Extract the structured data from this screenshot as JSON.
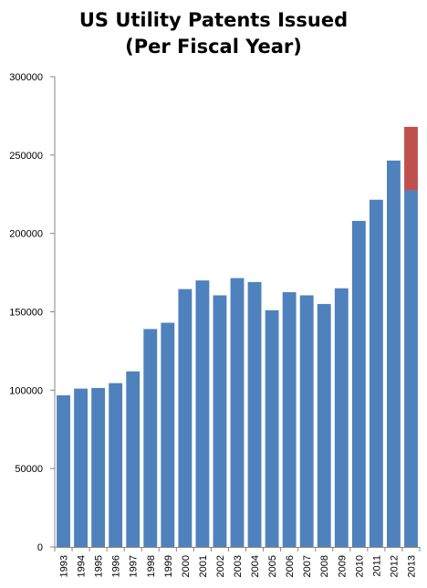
{
  "chart_data": {
    "type": "bar",
    "title": "US Utility Patents Issued",
    "subtitle": "(Per Fiscal Year)",
    "xlabel": "",
    "ylabel": "",
    "ylim": [
      0,
      300000
    ],
    "yticks": [
      0,
      50000,
      100000,
      150000,
      200000,
      250000,
      300000
    ],
    "ytick_labels": [
      "0",
      "50000",
      "100000",
      "150000",
      "200000",
      "250000",
      "300000"
    ],
    "grid": false,
    "legend": "none",
    "stacked": true,
    "categories": [
      "1993",
      "1994",
      "1995",
      "1996",
      "1997",
      "1998",
      "1999",
      "2000",
      "2001",
      "2002",
      "2003",
      "2004",
      "2005",
      "2006",
      "2007",
      "2008",
      "2009",
      "2010",
      "2011",
      "2012",
      "2013"
    ],
    "series": [
      {
        "color": "#4f81bd",
        "values": [
          96700,
          101000,
          101400,
          104500,
          112000,
          139000,
          143000,
          164500,
          170000,
          160500,
          171500,
          169000,
          151000,
          162500,
          160500,
          155000,
          165000,
          208000,
          221500,
          246500,
          227500
        ]
      },
      {
        "color": "#c0504d",
        "values": [
          0,
          0,
          0,
          0,
          0,
          0,
          0,
          0,
          0,
          0,
          0,
          0,
          0,
          0,
          0,
          0,
          0,
          0,
          0,
          0,
          40500
        ]
      }
    ]
  }
}
